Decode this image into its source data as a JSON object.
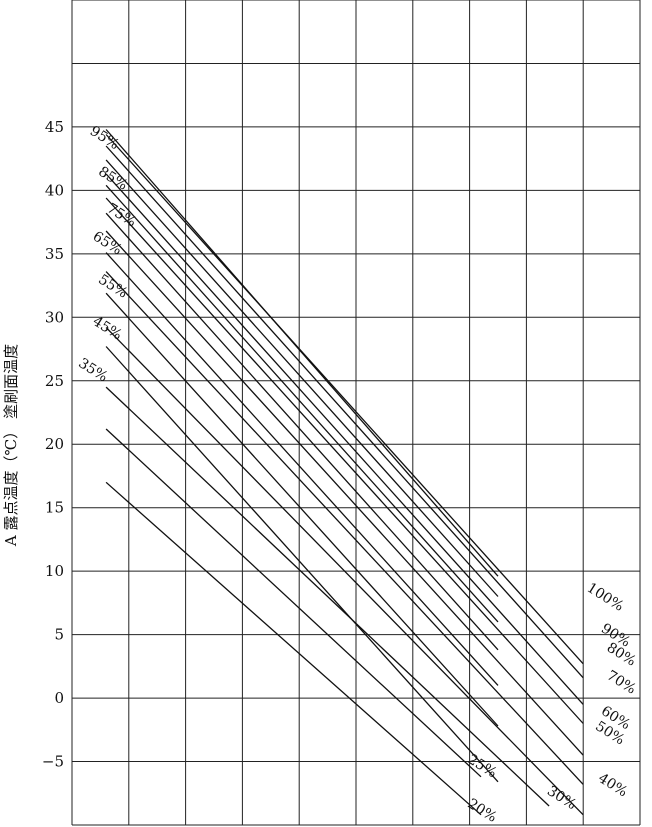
{
  "chart_data": {
    "type": "line",
    "ylabel": "A 露点温度（℃） 塗刷面温度",
    "xlabel": "",
    "ylim": [
      -10,
      55
    ],
    "yticks": [
      "45",
      "40",
      "35",
      "30",
      "25",
      "20",
      "15",
      "10",
      "5",
      "0",
      "−5"
    ],
    "ytick_values": [
      45,
      40,
      35,
      30,
      25,
      20,
      15,
      10,
      5,
      0,
      -5
    ],
    "xlim": [
      0,
      10
    ],
    "grid": true,
    "series": [
      {
        "name": "95%",
        "points": [
          [
            0.6,
            44.8
          ],
          [
            7.5,
            9.6
          ]
        ]
      },
      {
        "name": "100%",
        "points": [
          [
            0.6,
            44.4
          ],
          [
            9.0,
            2.7
          ]
        ]
      },
      {
        "name": "90%",
        "points": [
          [
            0.6,
            43.5
          ],
          [
            9.0,
            1.6
          ]
        ]
      },
      {
        "name": "85%",
        "points": [
          [
            0.6,
            42.4
          ],
          [
            7.5,
            8.0
          ]
        ]
      },
      {
        "name": "80%",
        "points": [
          [
            0.6,
            41.3
          ],
          [
            9.0,
            -0.5
          ]
        ]
      },
      {
        "name": "75%",
        "points": [
          [
            0.6,
            40.4
          ],
          [
            7.5,
            6.0
          ]
        ]
      },
      {
        "name": "70%",
        "points": [
          [
            0.6,
            39.4
          ],
          [
            9.0,
            -2.0
          ]
        ]
      },
      {
        "name": "65%",
        "points": [
          [
            0.6,
            38.2
          ],
          [
            7.5,
            3.8
          ]
        ]
      },
      {
        "name": "60%",
        "points": [
          [
            0.6,
            36.8
          ],
          [
            9.0,
            -4.5
          ]
        ]
      },
      {
        "name": "55%",
        "points": [
          [
            0.6,
            35.1
          ],
          [
            7.5,
            1.0
          ]
        ]
      },
      {
        "name": "50%",
        "points": [
          [
            0.6,
            33.6
          ],
          [
            9.0,
            -6.8
          ]
        ]
      },
      {
        "name": "45%",
        "points": [
          [
            0.6,
            31.9
          ],
          [
            7.5,
            -2.2
          ]
        ]
      },
      {
        "name": "40%",
        "points": [
          [
            0.6,
            29.2
          ],
          [
            9.0,
            -9.2
          ]
        ]
      },
      {
        "name": "35%",
        "points": [
          [
            0.6,
            27.7
          ],
          [
            7.5,
            -6.6
          ]
        ]
      },
      {
        "name": "30%",
        "points": [
          [
            0.6,
            24.5
          ],
          [
            8.4,
            -8.5
          ]
        ]
      },
      {
        "name": "25%",
        "points": [
          [
            0.6,
            21.2
          ],
          [
            7.2,
            -6.2
          ]
        ]
      },
      {
        "name": "20%",
        "points": [
          [
            0.6,
            17.0
          ],
          [
            7.2,
            -9.2
          ]
        ]
      }
    ],
    "labels": [
      {
        "text": "95%",
        "x": 0.3,
        "y": 44.5
      },
      {
        "text": "85%",
        "x": 0.45,
        "y": 41.3
      },
      {
        "text": "75%",
        "x": 0.6,
        "y": 38.4
      },
      {
        "text": "65%",
        "x": 0.35,
        "y": 36.2
      },
      {
        "text": "55%",
        "x": 0.45,
        "y": 32.8
      },
      {
        "text": "45%",
        "x": 0.35,
        "y": 29.5
      },
      {
        "text": "35%",
        "x": 0.1,
        "y": 26.2
      },
      {
        "text": "100%",
        "x": 9.05,
        "y": 8.5
      },
      {
        "text": "90%",
        "x": 9.3,
        "y": 5.3
      },
      {
        "text": "80%",
        "x": 9.4,
        "y": 3.8
      },
      {
        "text": "70%",
        "x": 9.4,
        "y": 1.6
      },
      {
        "text": "60%",
        "x": 9.3,
        "y": -1.2
      },
      {
        "text": "50%",
        "x": 9.2,
        "y": -2.4
      },
      {
        "text": "40%",
        "x": 9.25,
        "y": -6.5
      },
      {
        "text": "25%",
        "x": 6.95,
        "y": -5.0
      },
      {
        "text": "30%",
        "x": 8.35,
        "y": -7.5
      },
      {
        "text": "20%",
        "x": 6.95,
        "y": -8.5
      }
    ]
  }
}
